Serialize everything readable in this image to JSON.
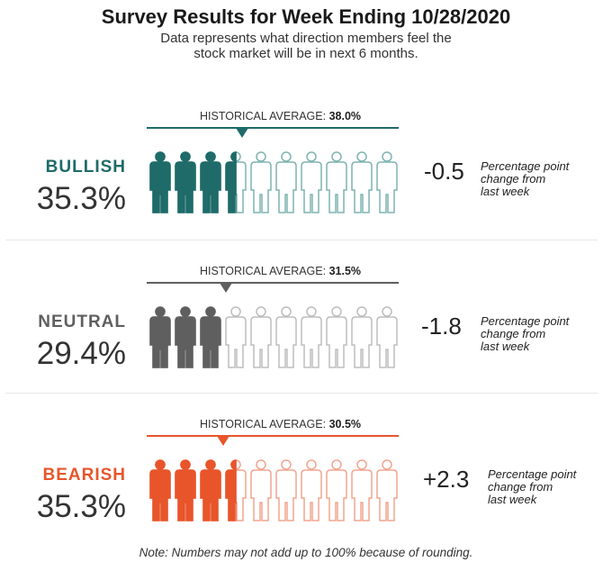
{
  "title": "Survey Results for Week Ending 10/28/2020",
  "subtitle_line1": "Data represents what direction members feel the",
  "subtitle_line2": "stock market will be in next 6 months.",
  "hist_prefix": "HISTORICAL AVERAGE: ",
  "change_note_line1": "Percentage point",
  "change_note_line2": "change from",
  "change_note_line3": "last week",
  "note": "Note: Numbers may not add up to 100% because of rounding.",
  "chart_data": {
    "type": "pictograph",
    "icon_count": 10,
    "categories": [
      {
        "name": "BULLISH",
        "percent_label": "35.3%",
        "value": 35.3,
        "historical_average_label": "38.0%",
        "historical_average": 38.0,
        "change_label": "-0.5",
        "change": -0.5,
        "color": "#1e6b69",
        "outline_color": "#7fb3b1"
      },
      {
        "name": "NEUTRAL",
        "percent_label": "29.4%",
        "value": 29.4,
        "historical_average_label": "31.5%",
        "historical_average": 31.5,
        "change_label": "-1.8",
        "change": -1.8,
        "color": "#5f5f5f",
        "outline_color": "#bdbdbd"
      },
      {
        "name": "BEARISH",
        "percent_label": "35.3%",
        "value": 35.3,
        "historical_average_label": "30.5%",
        "historical_average": 30.5,
        "change_label": "+2.3",
        "change": 2.3,
        "color": "#e8552b",
        "outline_color": "#f0a58f"
      }
    ]
  }
}
